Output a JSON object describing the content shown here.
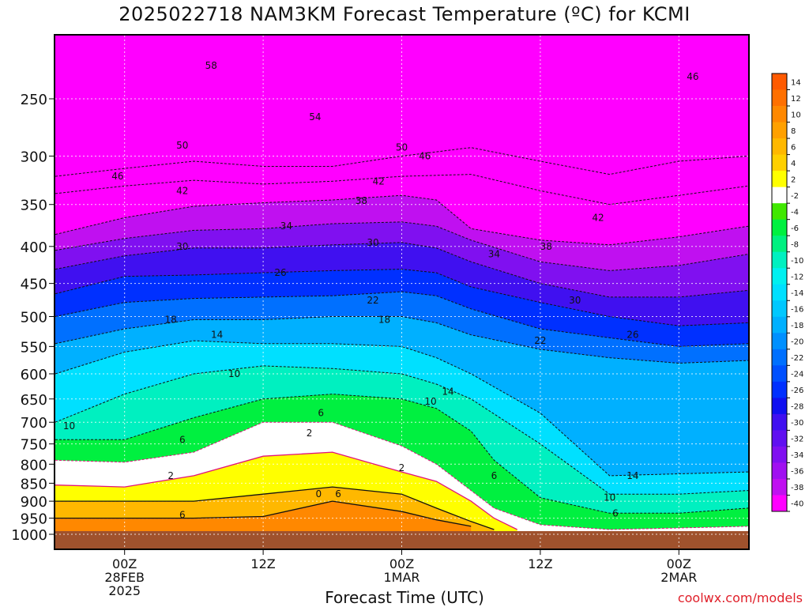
{
  "title": "2025022718 NAM3KM Forecast Temperature (ºC) for KCMI",
  "xlabel": "Forecast Time (UTC)",
  "credit": "coolwx.com/models",
  "chart_data": {
    "type": "heatmap",
    "title": "2025022718 NAM3KM Forecast Temperature (ºC) for KCMI",
    "xlabel": "Forecast Time (UTC)",
    "ylabel": "",
    "y_axis": {
      "scale": "pressure (inverted)",
      "range": [
        1000,
        200
      ],
      "ticks": [
        250,
        300,
        350,
        400,
        450,
        500,
        550,
        600,
        650,
        700,
        750,
        800,
        850,
        900,
        950,
        1000
      ]
    },
    "x_axis": {
      "range_hours": [
        0,
        60
      ],
      "ticks": [
        {
          "hour": 6,
          "label": [
            "00Z",
            "28FEB",
            "2025"
          ]
        },
        {
          "hour": 18,
          "label": [
            "12Z"
          ]
        },
        {
          "hour": 30,
          "label": [
            "00Z",
            "1MAR"
          ]
        },
        {
          "hour": 42,
          "label": [
            "12Z"
          ]
        },
        {
          "hour": 54,
          "label": [
            "00Z",
            "2MAR"
          ]
        }
      ]
    },
    "grid": true,
    "colorbar": {
      "position": "right",
      "levels": [
        {
          "label": "14",
          "color": "#ff5a00"
        },
        {
          "label": "12",
          "color": "#ff7000"
        },
        {
          "label": "10",
          "color": "#ff8800"
        },
        {
          "label": "8",
          "color": "#ffa000"
        },
        {
          "label": "6",
          "color": "#ffb800"
        },
        {
          "label": "4",
          "color": "#ffd000"
        },
        {
          "label": "2",
          "color": "#ffff00"
        },
        {
          "label": "-2",
          "color": "#ffffff"
        },
        {
          "label": "-4",
          "color": "#40e800"
        },
        {
          "label": "-6",
          "color": "#00f040"
        },
        {
          "label": "-8",
          "color": "#00f080"
        },
        {
          "label": "-10",
          "color": "#00f0c0"
        },
        {
          "label": "-12",
          "color": "#00f0f0"
        },
        {
          "label": "-14",
          "color": "#00e0ff"
        },
        {
          "label": "-16",
          "color": "#00c8ff"
        },
        {
          "label": "-18",
          "color": "#00b0ff"
        },
        {
          "label": "-20",
          "color": "#0090ff"
        },
        {
          "label": "-22",
          "color": "#0070ff"
        },
        {
          "label": "-24",
          "color": "#0050ff"
        },
        {
          "label": "-26",
          "color": "#0030ff"
        },
        {
          "label": "-28",
          "color": "#1010f0"
        },
        {
          "label": "-30",
          "color": "#4010f0"
        },
        {
          "label": "-32",
          "color": "#6010f0"
        },
        {
          "label": "-34",
          "color": "#8010f0"
        },
        {
          "label": "-36",
          "color": "#a010f0"
        },
        {
          "label": "-38",
          "color": "#c010f0"
        },
        {
          "label": "-40",
          "color": "#ff00ff"
        }
      ]
    },
    "isotherms": [
      {
        "value": -46,
        "points": [
          [
            0,
            320
          ],
          [
            6,
            312
          ],
          [
            12,
            305
          ],
          [
            18,
            310
          ],
          [
            24,
            310
          ],
          [
            30,
            300
          ],
          [
            36,
            292
          ],
          [
            42,
            305
          ],
          [
            48,
            318
          ],
          [
            54,
            305
          ],
          [
            60,
            300
          ]
        ]
      },
      {
        "value": -42,
        "points": [
          [
            0,
            338
          ],
          [
            6,
            330
          ],
          [
            12,
            324
          ],
          [
            18,
            328
          ],
          [
            24,
            325
          ],
          [
            30,
            320
          ],
          [
            36,
            318
          ],
          [
            42,
            335
          ],
          [
            48,
            350
          ],
          [
            54,
            340
          ],
          [
            60,
            330
          ]
        ]
      },
      {
        "value": -38,
        "points": [
          [
            0,
            385
          ],
          [
            6,
            365
          ],
          [
            12,
            352
          ],
          [
            18,
            348
          ],
          [
            24,
            345
          ],
          [
            30,
            340
          ],
          [
            33,
            345
          ],
          [
            36,
            378
          ],
          [
            42,
            392
          ],
          [
            48,
            398
          ],
          [
            54,
            388
          ],
          [
            60,
            375
          ]
        ]
      },
      {
        "value": -34,
        "points": [
          [
            0,
            405
          ],
          [
            6,
            390
          ],
          [
            12,
            380
          ],
          [
            18,
            378
          ],
          [
            24,
            372
          ],
          [
            30,
            370
          ],
          [
            33,
            375
          ],
          [
            36,
            392
          ],
          [
            42,
            420
          ],
          [
            48,
            432
          ],
          [
            54,
            425
          ],
          [
            60,
            410
          ]
        ]
      },
      {
        "value": -30,
        "points": [
          [
            0,
            430
          ],
          [
            6,
            412
          ],
          [
            12,
            402
          ],
          [
            18,
            402
          ],
          [
            24,
            398
          ],
          [
            30,
            395
          ],
          [
            33,
            402
          ],
          [
            36,
            420
          ],
          [
            42,
            450
          ],
          [
            48,
            470
          ],
          [
            54,
            470
          ],
          [
            60,
            460
          ]
        ]
      },
      {
        "value": -26,
        "points": [
          [
            0,
            465
          ],
          [
            6,
            440
          ],
          [
            12,
            438
          ],
          [
            18,
            435
          ],
          [
            24,
            432
          ],
          [
            30,
            430
          ],
          [
            33,
            435
          ],
          [
            36,
            455
          ],
          [
            42,
            478
          ],
          [
            48,
            500
          ],
          [
            54,
            515
          ],
          [
            60,
            510
          ]
        ]
      },
      {
        "value": -22,
        "points": [
          [
            0,
            500
          ],
          [
            6,
            478
          ],
          [
            12,
            472
          ],
          [
            18,
            470
          ],
          [
            24,
            468
          ],
          [
            30,
            462
          ],
          [
            33,
            468
          ],
          [
            36,
            488
          ],
          [
            42,
            520
          ],
          [
            48,
            535
          ],
          [
            54,
            550
          ],
          [
            60,
            545
          ]
        ]
      },
      {
        "value": -18,
        "points": [
          [
            0,
            545
          ],
          [
            6,
            520
          ],
          [
            12,
            505
          ],
          [
            18,
            505
          ],
          [
            24,
            500
          ],
          [
            30,
            500
          ],
          [
            33,
            510
          ],
          [
            36,
            530
          ],
          [
            42,
            555
          ],
          [
            48,
            570
          ],
          [
            54,
            580
          ],
          [
            60,
            575
          ]
        ]
      },
      {
        "value": -14,
        "points": [
          [
            0,
            600
          ],
          [
            6,
            560
          ],
          [
            12,
            540
          ],
          [
            18,
            545
          ],
          [
            24,
            545
          ],
          [
            30,
            550
          ],
          [
            33,
            570
          ],
          [
            36,
            600
          ],
          [
            42,
            680
          ],
          [
            48,
            830
          ],
          [
            54,
            825
          ],
          [
            60,
            820
          ]
        ]
      },
      {
        "value": -10,
        "points": [
          [
            0,
            700
          ],
          [
            6,
            640
          ],
          [
            12,
            600
          ],
          [
            18,
            585
          ],
          [
            24,
            590
          ],
          [
            30,
            600
          ],
          [
            33,
            620
          ],
          [
            36,
            650
          ],
          [
            42,
            750
          ],
          [
            48,
            880
          ],
          [
            54,
            880
          ],
          [
            60,
            870
          ]
        ]
      },
      {
        "value": -6,
        "points": [
          [
            0,
            740
          ],
          [
            6,
            740
          ],
          [
            12,
            690
          ],
          [
            18,
            650
          ],
          [
            24,
            640
          ],
          [
            30,
            650
          ],
          [
            33,
            670
          ],
          [
            36,
            720
          ],
          [
            38,
            790
          ],
          [
            42,
            890
          ],
          [
            48,
            935
          ],
          [
            54,
            935
          ],
          [
            60,
            920
          ]
        ]
      },
      {
        "value": -2,
        "points": [
          [
            0,
            790
          ],
          [
            6,
            795
          ],
          [
            12,
            770
          ],
          [
            18,
            700
          ],
          [
            24,
            700
          ],
          [
            30,
            755
          ],
          [
            33,
            800
          ],
          [
            36,
            870
          ],
          [
            38,
            920
          ],
          [
            42,
            970
          ],
          [
            48,
            985
          ],
          [
            54,
            980
          ],
          [
            60,
            975
          ]
        ]
      },
      {
        "value": 2,
        "points": [
          [
            0,
            855
          ],
          [
            6,
            860
          ],
          [
            12,
            830
          ],
          [
            18,
            780
          ],
          [
            24,
            770
          ],
          [
            30,
            820
          ],
          [
            33,
            845
          ],
          [
            36,
            900
          ],
          [
            38,
            950
          ],
          [
            40,
            985
          ]
        ]
      },
      {
        "value": 6,
        "points": [
          [
            0,
            900
          ],
          [
            6,
            900
          ],
          [
            12,
            900
          ],
          [
            18,
            880
          ],
          [
            24,
            860
          ],
          [
            30,
            880
          ],
          [
            33,
            920
          ],
          [
            36,
            960
          ],
          [
            38,
            985
          ]
        ]
      },
      {
        "value": 10,
        "points": [
          [
            0,
            950
          ],
          [
            6,
            950
          ],
          [
            12,
            950
          ],
          [
            18,
            945
          ],
          [
            24,
            900
          ],
          [
            30,
            930
          ],
          [
            33,
            955
          ],
          [
            36,
            975
          ]
        ]
      }
    ],
    "isotherm_labels": [
      {
        "text": "58",
        "hour": 13.5,
        "p": 225
      },
      {
        "text": "54",
        "hour": 22.5,
        "p": 265
      },
      {
        "text": "50",
        "hour": 11,
        "p": 290
      },
      {
        "text": "50",
        "hour": 30,
        "p": 292
      },
      {
        "text": "46",
        "hour": 5.4,
        "p": 320
      },
      {
        "text": "46",
        "hour": 32,
        "p": 300
      },
      {
        "text": "46",
        "hour": 55.2,
        "p": 233
      },
      {
        "text": "42",
        "hour": 11,
        "p": 335
      },
      {
        "text": "42",
        "hour": 28,
        "p": 325
      },
      {
        "text": "42",
        "hour": 47,
        "p": 365
      },
      {
        "text": "38",
        "hour": 26.5,
        "p": 346
      },
      {
        "text": "38",
        "hour": 42.5,
        "p": 400
      },
      {
        "text": "34",
        "hour": 20,
        "p": 375
      },
      {
        "text": "34",
        "hour": 38,
        "p": 410
      },
      {
        "text": "30",
        "hour": 11,
        "p": 400
      },
      {
        "text": "30",
        "hour": 27.5,
        "p": 395
      },
      {
        "text": "30",
        "hour": 45,
        "p": 475
      },
      {
        "text": "26",
        "hour": 19.5,
        "p": 435
      },
      {
        "text": "26",
        "hour": 50,
        "p": 530
      },
      {
        "text": "22",
        "hour": 27.5,
        "p": 475
      },
      {
        "text": "22",
        "hour": 42,
        "p": 540
      },
      {
        "text": "18",
        "hour": 10,
        "p": 505
      },
      {
        "text": "18",
        "hour": 28.5,
        "p": 505
      },
      {
        "text": "14",
        "hour": 14,
        "p": 530
      },
      {
        "text": "14",
        "hour": 34,
        "p": 635
      },
      {
        "text": "10",
        "hour": 15.5,
        "p": 600
      },
      {
        "text": "10",
        "hour": 32.5,
        "p": 655
      },
      {
        "text": "10",
        "hour": 1.2,
        "p": 708
      },
      {
        "text": "10",
        "hour": 48,
        "p": 890
      },
      {
        "text": "14",
        "hour": 50,
        "p": 830
      },
      {
        "text": "6",
        "hour": 23,
        "p": 680
      },
      {
        "text": "6",
        "hour": 11,
        "p": 740
      },
      {
        "text": "6",
        "hour": 38,
        "p": 830
      },
      {
        "text": "6",
        "hour": 48.5,
        "p": 935
      },
      {
        "text": "2",
        "hour": 22,
        "p": 725
      },
      {
        "text": "2",
        "hour": 10,
        "p": 830
      },
      {
        "text": "2",
        "hour": 30,
        "p": 810
      },
      {
        "text": "6",
        "hour": 24.5,
        "p": 880
      },
      {
        "text": "6",
        "hour": 11,
        "p": 940
      },
      {
        "text": "0",
        "hour": 22.8,
        "p": 880
      }
    ]
  }
}
